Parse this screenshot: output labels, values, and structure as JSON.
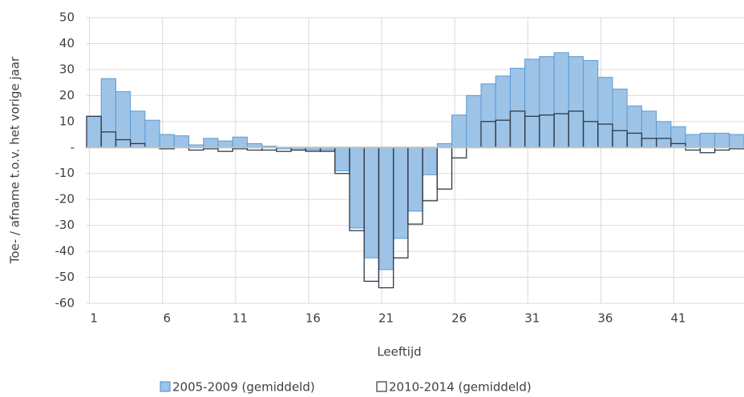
{
  "chart_data": {
    "type": "bar",
    "y_label": "Toe- / afname t.o.v. het vorige jaar",
    "x_label": "Leeftijd",
    "categories": [
      "1",
      null,
      null,
      null,
      null,
      "6",
      null,
      null,
      null,
      null,
      "11",
      null,
      null,
      null,
      null,
      "16",
      null,
      null,
      null,
      null,
      "21",
      null,
      null,
      null,
      null,
      "26",
      null,
      null,
      null,
      null,
      "31",
      null,
      null,
      null,
      null,
      "36",
      null,
      null,
      null,
      null,
      "41",
      null,
      null,
      null,
      null
    ],
    "series": [
      {
        "name": "2005-2009 (gemiddeld)",
        "color": "#9dc3e6",
        "stroke": "#5b9bd5",
        "values": [
          12,
          26.5,
          21.5,
          14,
          10.5,
          5,
          4.5,
          1,
          3.5,
          2.5,
          4,
          1.5,
          0.5,
          -0.5,
          -1,
          -1,
          -1,
          -9,
          -31,
          -42.5,
          -47,
          -35,
          -24.5,
          -10.5,
          1.5,
          12.5,
          20,
          24.5,
          27.5,
          30.5,
          34,
          35,
          36.5,
          35,
          33.5,
          27,
          22.5,
          16,
          14,
          10,
          8,
          5,
          5.5,
          5.5,
          5
        ]
      },
      {
        "name": "2010-2014 (gemiddeld)",
        "color": "none",
        "stroke": "#2f3a47",
        "values": [
          12,
          6,
          3,
          1.5,
          0,
          -0.5,
          0,
          -1,
          -0.5,
          -1.5,
          -0.5,
          -1,
          -1,
          -1.5,
          -1,
          -1.5,
          -1.5,
          -10,
          -32,
          -51.5,
          -54,
          -42.5,
          -29.5,
          -20.5,
          -16,
          -4,
          0,
          10,
          10.5,
          14,
          12,
          12.5,
          13,
          14,
          10,
          9,
          6.5,
          5.5,
          3.5,
          3.5,
          1.5,
          -1,
          -2,
          -1,
          -0.5
        ]
      }
    ],
    "ylim": [
      -60,
      50
    ],
    "yticks": [
      -60,
      -50,
      -40,
      -30,
      -20,
      -10,
      {
        "value": 0,
        "label": "-"
      },
      10,
      20,
      30,
      40,
      50
    ],
    "grid": true
  }
}
